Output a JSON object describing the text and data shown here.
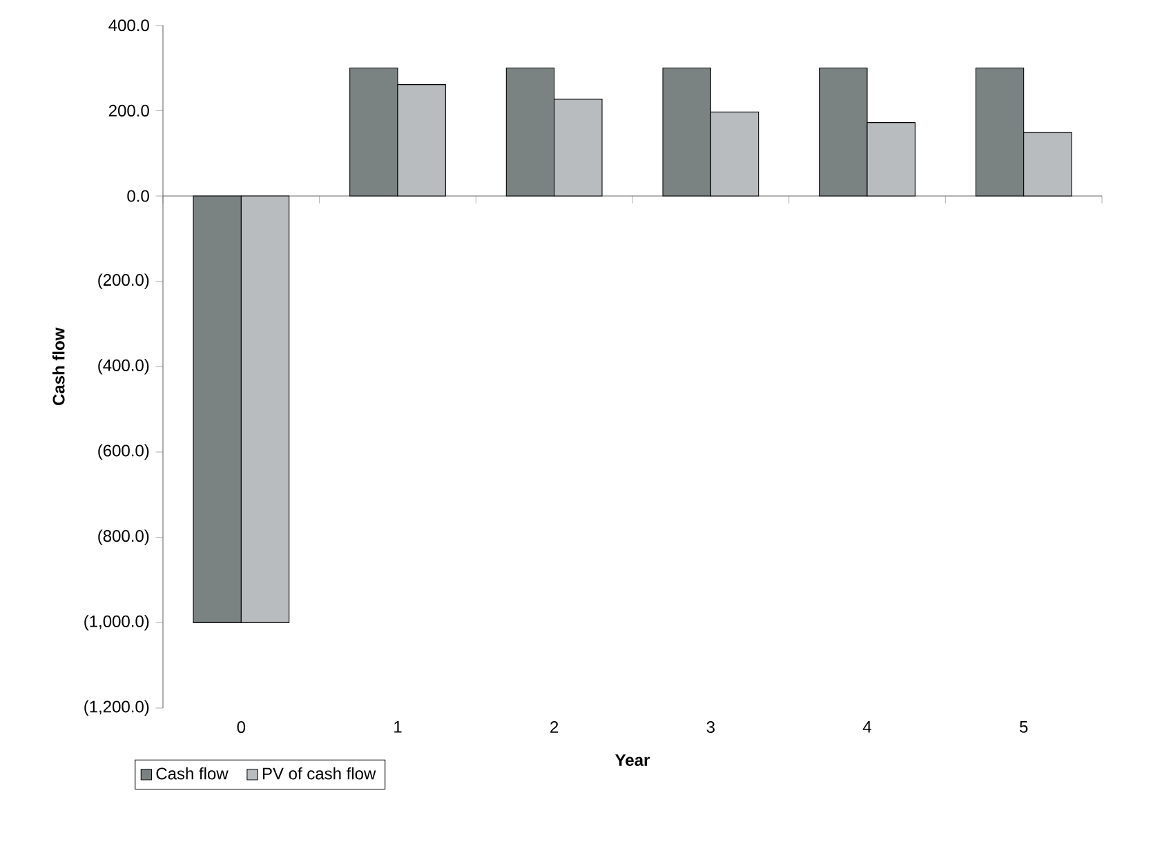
{
  "chart_data": {
    "type": "bar",
    "xlabel": "Year",
    "ylabel": "Cash flow",
    "categories": [
      "0",
      "1",
      "2",
      "3",
      "4",
      "5"
    ],
    "series": [
      {
        "name": "Cash flow",
        "color": "#7a8282",
        "values": [
          -1000,
          300,
          300,
          300,
          300,
          300
        ]
      },
      {
        "name": "PV of cash flow",
        "color": "#b9bcbe",
        "values": [
          -1000,
          261,
          227,
          197,
          172,
          149
        ]
      }
    ],
    "ylim": [
      -1200,
      400
    ],
    "yticks": [
      {
        "value": -1200,
        "label": "(1,200.0)"
      },
      {
        "value": -1000,
        "label": "(1,000.0)"
      },
      {
        "value": -800,
        "label": "(800.0)"
      },
      {
        "value": -600,
        "label": "(600.0)"
      },
      {
        "value": -400,
        "label": "(400.0)"
      },
      {
        "value": -200,
        "label": "(200.0)"
      },
      {
        "value": 0,
        "label": "0.0"
      },
      {
        "value": 200,
        "label": "200.0"
      },
      {
        "value": 400,
        "label": "400.0"
      }
    ],
    "legend": "bottom left"
  }
}
